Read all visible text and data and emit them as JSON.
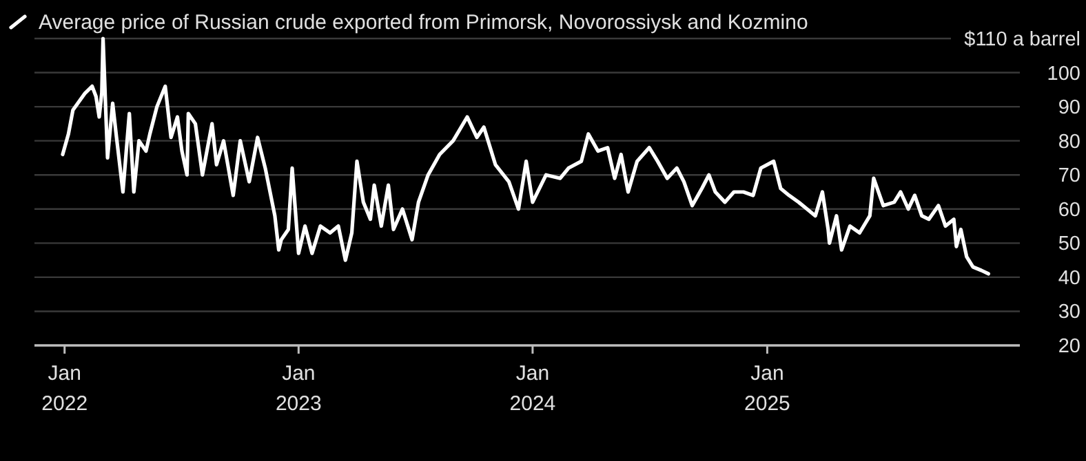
{
  "chart_data": {
    "type": "line",
    "legend": "top left",
    "grid": "y",
    "line_style": "solid",
    "marker": "none",
    "xlim": [
      "2021-11-15",
      "2026-01-30"
    ],
    "xticks": [
      {
        "value": "2022-01-01",
        "label": "Jan\n2022"
      },
      {
        "value": "2023-01-01",
        "label": "Jan\n2023"
      },
      {
        "value": "2024-01-01",
        "label": "Jan\n2024"
      },
      {
        "value": "2025-01-01",
        "label": "Jan\n2025"
      }
    ],
    "ylim": [
      20,
      110
    ],
    "yticks": [
      20,
      30,
      40,
      50,
      60,
      70,
      80,
      90,
      100,
      {
        "value": 110,
        "label": "$110 a barrel"
      }
    ],
    "x": [
      "2021-12-29",
      "2022-01-07",
      "2022-01-14",
      "2022-02-02",
      "2022-02-13",
      "2022-02-19",
      "2022-02-24",
      "2022-02-28",
      "2022-03-02",
      "2022-03-09",
      "2022-03-17",
      "2022-03-23",
      "2022-04-02",
      "2022-04-12",
      "2022-04-19",
      "2022-04-27",
      "2022-05-08",
      "2022-05-14",
      "2022-05-25",
      "2022-06-07",
      "2022-06-16",
      "2022-06-26",
      "2022-07-03",
      "2022-07-11",
      "2022-07-13",
      "2022-07-24",
      "2022-08-04",
      "2022-08-19",
      "2022-08-26",
      "2022-09-06",
      "2022-09-21",
      "2022-10-02",
      "2022-10-16",
      "2022-10-29",
      "2022-11-10",
      "2022-11-25",
      "2022-12-01",
      "2022-12-05",
      "2022-12-16",
      "2022-12-22",
      "2023-01-01",
      "2023-01-11",
      "2023-01-22",
      "2023-02-04",
      "2023-02-19",
      "2023-03-04",
      "2023-03-15",
      "2023-03-25",
      "2023-04-02",
      "2023-04-12",
      "2023-04-23",
      "2023-04-29",
      "2023-05-10",
      "2023-05-21",
      "2023-05-29",
      "2023-06-12",
      "2023-06-27",
      "2023-07-07",
      "2023-07-22",
      "2023-08-09",
      "2023-08-30",
      "2023-09-21",
      "2023-10-06",
      "2023-10-17",
      "2023-11-04",
      "2023-11-25",
      "2023-12-10",
      "2023-12-22",
      "2024-01-01",
      "2024-01-22",
      "2024-02-13",
      "2024-02-26",
      "2024-03-17",
      "2024-03-28",
      "2024-04-12",
      "2024-04-27",
      "2024-05-08",
      "2024-05-18",
      "2024-05-29",
      "2024-06-12",
      "2024-07-01",
      "2024-07-14",
      "2024-07-29",
      "2024-08-13",
      "2024-08-24",
      "2024-09-06",
      "2024-09-21",
      "2024-10-02",
      "2024-10-12",
      "2024-10-27",
      "2024-11-10",
      "2024-11-25",
      "2024-12-10",
      "2024-12-22",
      "2025-01-11",
      "2025-01-22",
      "2025-02-04",
      "2025-02-19",
      "2025-03-04",
      "2025-03-17",
      "2025-03-28",
      "2025-04-06",
      "2025-04-08",
      "2025-04-19",
      "2025-04-27",
      "2025-05-10",
      "2025-05-25",
      "2025-06-10",
      "2025-06-16",
      "2025-07-01",
      "2025-07-18",
      "2025-07-28",
      "2025-08-09",
      "2025-08-19",
      "2025-08-30",
      "2025-09-10",
      "2025-09-25",
      "2025-10-06",
      "2025-10-19",
      "2025-10-23",
      "2025-10-30",
      "2025-11-08",
      "2025-11-18",
      "2025-12-01",
      "2025-12-12"
    ],
    "series": [
      {
        "name": "Average price of Russian crude exported from Primorsk, Novorossiysk and Kozmino",
        "color": "#ffffff",
        "values": [
          76,
          82,
          89,
          94,
          96,
          93,
          87,
          94,
          110,
          75,
          91,
          81,
          65,
          88,
          65,
          80,
          77,
          82,
          90,
          96,
          81,
          87,
          77,
          70,
          88,
          85,
          70,
          85,
          73,
          80,
          64,
          80,
          68,
          81,
          72,
          58,
          48,
          51,
          54,
          72,
          47,
          55,
          47,
          55,
          53,
          55,
          45,
          53,
          74,
          62,
          57,
          67,
          55,
          67,
          54,
          60,
          51,
          62,
          70,
          76,
          80,
          87,
          81,
          84,
          73,
          68,
          60,
          74,
          62,
          70,
          69,
          72,
          74,
          82,
          77,
          78,
          69,
          76,
          65,
          74,
          78,
          74,
          69,
          72,
          68,
          61,
          66,
          70,
          65,
          62,
          65,
          65,
          64,
          72,
          74,
          66,
          64,
          62,
          60,
          58,
          65,
          54,
          50,
          58,
          48,
          55,
          53,
          58,
          69,
          61,
          62,
          65,
          60,
          64,
          58,
          57,
          61,
          55,
          57,
          49,
          54,
          46,
          43,
          42,
          41
        ]
      }
    ]
  }
}
